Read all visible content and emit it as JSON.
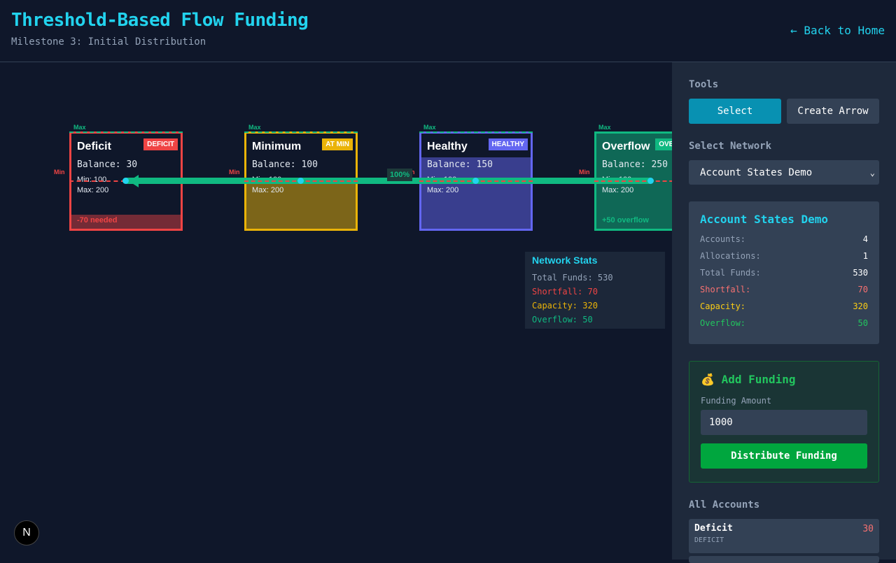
{
  "header": {
    "title": "Threshold-Based Flow Funding",
    "subtitle": "Milestone 3: Initial Distribution",
    "back_link": "← Back to Home"
  },
  "canvas": {
    "nodes": [
      {
        "name": "Deficit",
        "badge": "DEFICIT",
        "balance": "Balance: 30",
        "min": "Min: 100",
        "max": "Max: 200",
        "note": "-70 needed",
        "color": "#ef4444",
        "fill_fraction": 0.15
      },
      {
        "name": "Minimum",
        "badge": "AT MIN",
        "balance": "Balance: 100",
        "min": "Min: 100",
        "max": "Max: 200",
        "note": "",
        "color": "#eab308",
        "fill_fraction": 0.5
      },
      {
        "name": "Healthy",
        "badge": "HEALTHY",
        "balance": "Balance: 150",
        "min": "Min: 100",
        "max": "Max: 200",
        "note": "",
        "color": "#6366f1",
        "fill_fraction": 0.75
      },
      {
        "name": "Overflow",
        "badge": "OVERFLOW",
        "balance": "Balance: 250",
        "min": "Min: 100",
        "max": "Max: 200",
        "note": "+50 overflow",
        "color": "#10b981",
        "fill_fraction": 1
      }
    ],
    "max_label": "Max",
    "min_label": "Min",
    "flow_label": "100%",
    "network_stats": {
      "title": "Network Stats",
      "total": "Total Funds: 530",
      "shortfall": "Shortfall: 70",
      "capacity": "Capacity: 320",
      "overflow": "Overflow: 50"
    }
  },
  "sidebar": {
    "tools_label": "Tools",
    "select_button": "Select",
    "create_arrow_button": "Create Arrow",
    "network_label": "Select Network",
    "network_value": "Account States Demo",
    "summary": {
      "title": "Account States Demo",
      "rows": [
        {
          "label": "Accounts:",
          "value": "4",
          "color": "#94a3b8",
          "vcolor": "#ffffff"
        },
        {
          "label": "Allocations:",
          "value": "1",
          "color": "#94a3b8",
          "vcolor": "#ffffff"
        },
        {
          "label": "Total Funds:",
          "value": "530",
          "color": "#94a3b8",
          "vcolor": "#ffffff"
        },
        {
          "label": "Shortfall:",
          "value": "70",
          "color": "#f87171",
          "vcolor": "#f87171"
        },
        {
          "label": "Capacity:",
          "value": "320",
          "color": "#facc15",
          "vcolor": "#facc15"
        },
        {
          "label": "Overflow:",
          "value": "50",
          "color": "#22c55e",
          "vcolor": "#22c55e"
        }
      ]
    },
    "funding": {
      "icon": "💰",
      "title": "Add Funding",
      "amount_label": "Funding Amount",
      "amount_value": "1000",
      "button": "Distribute Funding"
    },
    "all_accounts_label": "All Accounts",
    "accounts": [
      {
        "name": "Deficit",
        "status": "DEFICIT",
        "balance": "30"
      }
    ]
  },
  "logo": "N"
}
